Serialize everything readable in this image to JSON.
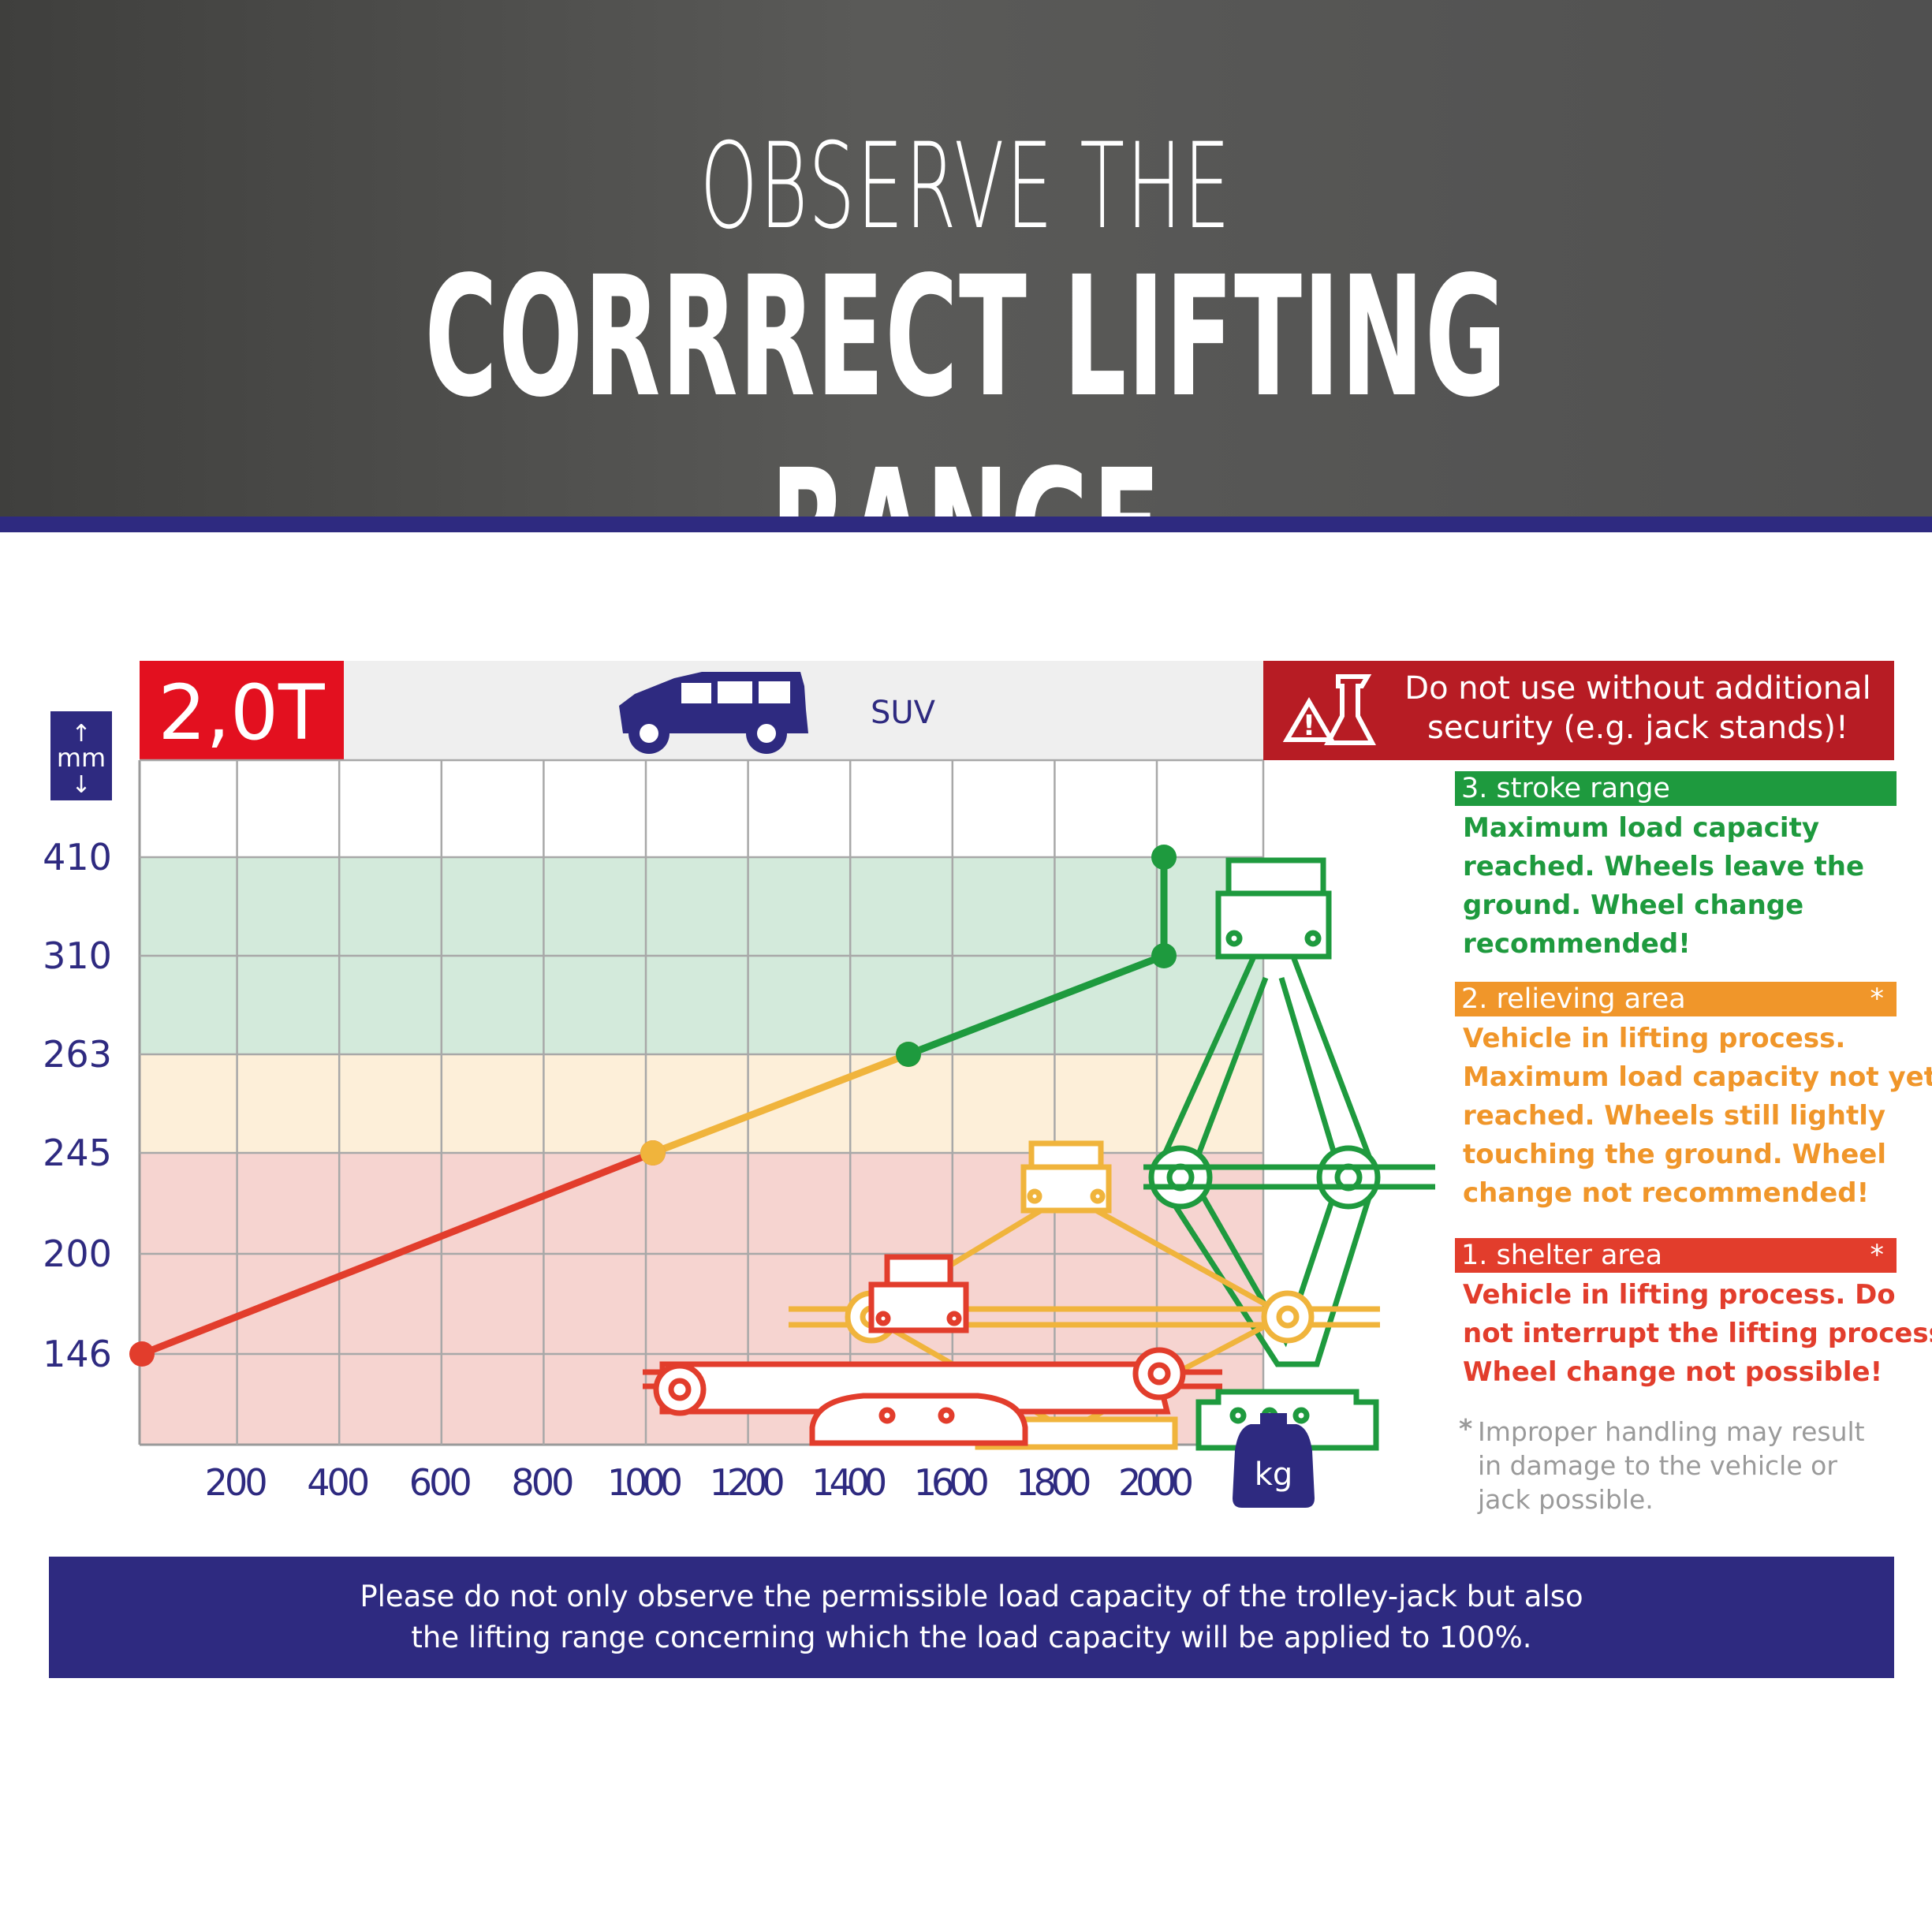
{
  "header": {
    "line1": "OBSERVE THE",
    "line2": "CORRRECT LIFTING RANGE"
  },
  "capacity_badge": "2,0T",
  "vehicle_label": "SUV",
  "unit_mm": "mm",
  "unit_kg": "kg",
  "warning": "Do not use without additional security (e.g. jack stands)!",
  "zones": [
    {
      "head": "3. stroke range",
      "asterisk": "",
      "color": "#1e9a3e",
      "lines": [
        "Maximum load capacity",
        "reached. Wheels leave the",
        "ground. Wheel change",
        "recommended!"
      ]
    },
    {
      "head": "2. relieving area",
      "asterisk": "*",
      "color": "#f0962a",
      "lines": [
        "Vehicle in lifting process.",
        "Maximum load capacity not yet",
        "reached. Wheels still lightly",
        "touching the ground. Wheel",
        "change not recommended!"
      ]
    },
    {
      "head": "1. shelter area",
      "asterisk": "*",
      "color": "#e23d2c",
      "lines": [
        "Vehicle in lifting process. Do",
        "not interrupt the lifting process.",
        "Wheel change not possible!"
      ]
    }
  ],
  "note": {
    "asterisk": "*",
    "lines": [
      "Improper handling may result",
      "in damage to the vehicle or",
      "jack possible."
    ]
  },
  "footer": {
    "lines": [
      "Please do not only observe the permissible load capacity of the trolley-jack but also",
      "the lifting range concerning which the load capacity will be applied to 100%."
    ]
  },
  "colors": {
    "navy": "#2e2a80",
    "red": "#e23d2c",
    "orange": "#f0b43c",
    "green": "#1e9a3e",
    "badge_red": "#e3101f",
    "warn_red": "#b71c24"
  },
  "chart_data": {
    "type": "line",
    "xlabel": "kg",
    "ylabel": "mm",
    "x_ticks": [
      200,
      400,
      600,
      800,
      1000,
      1200,
      1400,
      1600,
      1800,
      2000
    ],
    "y_ticks": [
      146,
      200,
      245,
      263,
      310,
      410
    ],
    "xlim": [
      0,
      2200
    ],
    "grid": true,
    "bands": [
      {
        "from": 146,
        "to": 245,
        "color": "#f6d4d0"
      },
      {
        "from": 245,
        "to": 263,
        "color": "#fdefd9"
      },
      {
        "from": 263,
        "to": 410,
        "color": "#d3eadb"
      }
    ],
    "series": [
      {
        "color": "#e23d2c",
        "points": [
          [
            0,
            146
          ],
          [
            1000,
            245
          ]
        ]
      },
      {
        "color": "#f0b43c",
        "points": [
          [
            1000,
            245
          ],
          [
            1500,
            263
          ]
        ]
      },
      {
        "color": "#1e9a3e",
        "points": [
          [
            1500,
            263
          ],
          [
            2000,
            310
          ],
          [
            2000,
            410
          ]
        ]
      }
    ]
  }
}
